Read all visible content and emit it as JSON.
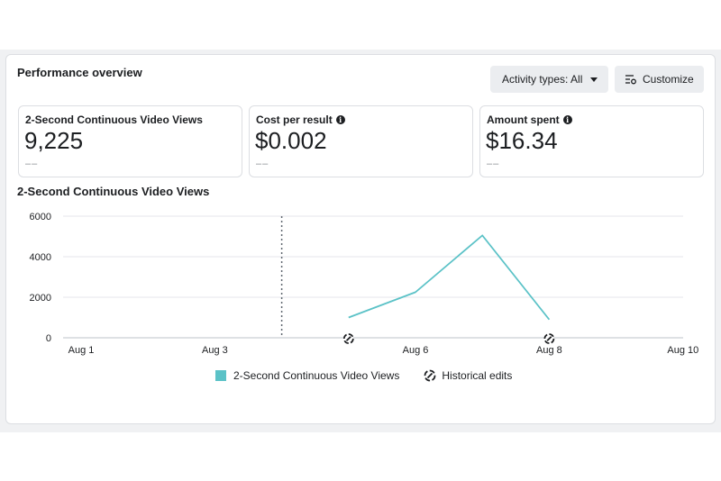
{
  "header": {
    "title": "Performance overview",
    "activity_button": "Activity types: All",
    "customize_button": "Customize"
  },
  "metrics": [
    {
      "label": "2-Second Continuous Video Views",
      "value": "9,225",
      "delta": "––",
      "info": false
    },
    {
      "label": "Cost per result",
      "value": "$0.002",
      "delta": "––",
      "info": true
    },
    {
      "label": "Amount spent",
      "value": "$16.34",
      "delta": "––",
      "info": true
    }
  ],
  "chart_title": "2-Second Continuous Video Views",
  "chart_data": {
    "type": "line",
    "title": "2-Second Continuous Video Views",
    "x_tick_labels": [
      "Aug 1",
      "Aug 3",
      "Aug 6",
      "Aug 8",
      "Aug 10"
    ],
    "x_tick_days": [
      1,
      3,
      6,
      8,
      10
    ],
    "y_ticks": [
      0,
      2000,
      4000,
      6000
    ],
    "ylim": [
      0,
      6000
    ],
    "xlim": [
      1,
      10
    ],
    "series": [
      {
        "name": "2-Second Continuous Video Views",
        "color": "#5bc2c7",
        "x": [
          5,
          6,
          7,
          8
        ],
        "y": [
          1000,
          2250,
          5050,
          900
        ]
      }
    ],
    "divider_x": 4,
    "historical_edit_days": [
      5,
      8
    ]
  },
  "legend": {
    "series_label": "2-Second Continuous Video Views",
    "edits_label": "Historical edits"
  },
  "colors": {
    "series": "#5bc2c7",
    "gridline": "#e4e6eb",
    "button_bg": "#ebedf0"
  }
}
